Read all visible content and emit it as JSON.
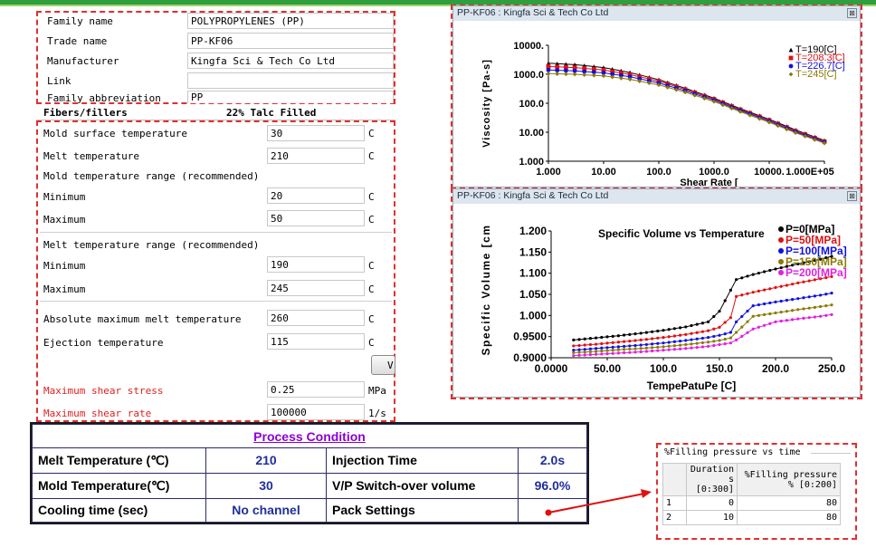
{
  "material": {
    "family_name_label": "Family name",
    "family_name": "POLYPROPYLENES (PP)",
    "trade_name_label": "Trade name",
    "trade_name": "PP-KF06",
    "manufacturer_label": "Manufacturer",
    "manufacturer": "Kingfa Sci & Tech Co Ltd",
    "link_label": "Link",
    "link": "",
    "family_abbrev_label": "Family abbreviation",
    "family_abbrev": "PP",
    "fibers_label": "Fibers/fillers",
    "fibers_value": "22% Talc Filled"
  },
  "temps": {
    "mold_surface_label": "Mold surface temperature",
    "mold_surface": "30",
    "melt_temp_label": "Melt temperature",
    "melt_temp": "210",
    "mold_range_label": "Mold temperature range (recommended)",
    "mold_min_label": "Minimum",
    "mold_min": "20",
    "mold_max_label": "Maximum",
    "mold_max": "50",
    "melt_range_label": "Melt temperature range (recommended)",
    "melt_min_label": "Minimum",
    "melt_min": "190",
    "melt_max_label": "Maximum",
    "melt_max": "245",
    "abs_max_label": "Absolute maximum melt temperature",
    "abs_max": "260",
    "ejection_label": "Ejection temperature",
    "ejection": "115",
    "unit_c": "C",
    "view_button": "V",
    "shear_stress_label": "Maximum shear stress",
    "shear_stress": "0.25",
    "shear_stress_unit": "MPa",
    "shear_rate_label": "Maximum shear rate",
    "shear_rate": "100000",
    "shear_rate_unit": "1/s"
  },
  "viscosity_window": {
    "title": "PP-KF06 : Kingfa Sci & Tech Co Ltd",
    "close": "⊠"
  },
  "pvt_window": {
    "title": "PP-KF06 : Kingfa Sci & Tech Co Ltd",
    "close": "⊠"
  },
  "chart_data": [
    {
      "type": "line",
      "title": "",
      "xlabel": "Shear Rate [",
      "ylabel": "Viscosity [Pa-s]",
      "x_scale": "log",
      "y_scale": "log",
      "xlim": [
        1,
        100000
      ],
      "ylim": [
        1,
        10000
      ],
      "x_ticks": [
        "1.000",
        "10.00",
        "100.0",
        "1000.0",
        "10000.",
        "1.000E+05"
      ],
      "y_ticks": [
        "1.000",
        "10.00",
        "100.0",
        "1000.0",
        "10000."
      ],
      "legend_position": "top-right",
      "x": [
        1,
        3,
        10,
        30,
        100,
        300,
        1000,
        3000,
        10000,
        30000,
        100000
      ],
      "series": [
        {
          "name": "T=190[C]",
          "color": "#000000",
          "marker": "triangle",
          "values": [
            2400,
            2150,
            1700,
            1150,
            650,
            330,
            150,
            65,
            28,
            12,
            5.2
          ]
        },
        {
          "name": "T=208.3[C]",
          "color": "#e01010",
          "marker": "square",
          "values": [
            1850,
            1700,
            1400,
            980,
            580,
            300,
            138,
            60,
            26,
            11,
            4.8
          ]
        },
        {
          "name": "T=226.7[C]",
          "color": "#1010e0",
          "marker": "circle",
          "values": [
            1400,
            1310,
            1120,
            820,
            500,
            270,
            127,
            56,
            24,
            10.3,
            4.5
          ]
        },
        {
          "name": "T=245[C]",
          "color": "#8a7a00",
          "marker": "diamond",
          "values": [
            1050,
            1000,
            880,
            670,
            430,
            240,
            115,
            51,
            22,
            9.6,
            4.2
          ]
        }
      ]
    },
    {
      "type": "line",
      "title": "Specific Volume vs Temperature",
      "xlabel": "TempePatuPe [C]",
      "ylabel": "Specific Volume [cm",
      "xlim": [
        0,
        250
      ],
      "ylim": [
        0.9,
        1.2
      ],
      "x_ticks": [
        "0.0000",
        "50.00",
        "100.0",
        "150.0",
        "200.0",
        "250.0"
      ],
      "y_ticks": [
        "0.9000",
        "0.9500",
        "1.000",
        "1.050",
        "1.100",
        "1.150",
        "1.200"
      ],
      "legend_position": "top-right",
      "x": [
        20,
        40,
        60,
        80,
        100,
        120,
        140,
        150,
        160,
        165,
        180,
        200,
        220,
        240,
        250
      ],
      "series": [
        {
          "name": "P=0[MPa]",
          "color": "#000000",
          "values": [
            0.942,
            0.947,
            0.952,
            0.958,
            0.965,
            0.973,
            0.985,
            1.01,
            1.06,
            1.085,
            1.097,
            1.11,
            1.122,
            1.133,
            1.14
          ]
        },
        {
          "name": "P=50[MPa]",
          "color": "#e01010",
          "values": [
            0.928,
            0.932,
            0.937,
            0.942,
            0.948,
            0.955,
            0.964,
            0.972,
            0.995,
            1.045,
            1.055,
            1.066,
            1.077,
            1.087,
            1.092
          ]
        },
        {
          "name": "P=100[MPa]",
          "color": "#1010e0",
          "values": [
            0.918,
            0.922,
            0.926,
            0.93,
            0.935,
            0.941,
            0.948,
            0.953,
            0.96,
            0.985,
            1.023,
            1.032,
            1.04,
            1.048,
            1.053
          ]
        },
        {
          "name": "P=150[MPa]",
          "color": "#8a7a00",
          "values": [
            0.912,
            0.915,
            0.919,
            0.922,
            0.926,
            0.931,
            0.937,
            0.941,
            0.947,
            0.96,
            0.998,
            1.006,
            1.014,
            1.021,
            1.025
          ]
        },
        {
          "name": "P=200[MPa]",
          "color": "#e020e0",
          "values": [
            0.905,
            0.908,
            0.911,
            0.914,
            0.918,
            0.922,
            0.927,
            0.931,
            0.935,
            0.942,
            0.968,
            0.985,
            0.992,
            0.998,
            1.002
          ]
        }
      ]
    }
  ],
  "process": {
    "header": "Process Condition",
    "rows": [
      {
        "label1": "Melt Temperature (℃)",
        "value1": "210",
        "label2": "Injection Time",
        "value2": "2.0s"
      },
      {
        "label1": "Mold Temperature(℃)",
        "value1": "30",
        "label2": "V/P Switch-over volume",
        "value2": "96.0%"
      },
      {
        "label1": "Cooling time (sec)",
        "value1": "No channel",
        "label2": "Pack Settings",
        "value2": ""
      }
    ]
  },
  "filling": {
    "title": "%Filling pressure vs time",
    "col1_line1": "Duration",
    "col1_line2": "s [0:300]",
    "col2_line1": "%Filling pressure",
    "col2_line2": "% [0:200]",
    "rows": [
      {
        "idx": "1",
        "duration": "0",
        "pressure": "80"
      },
      {
        "idx": "2",
        "duration": "10",
        "pressure": "80"
      }
    ]
  }
}
